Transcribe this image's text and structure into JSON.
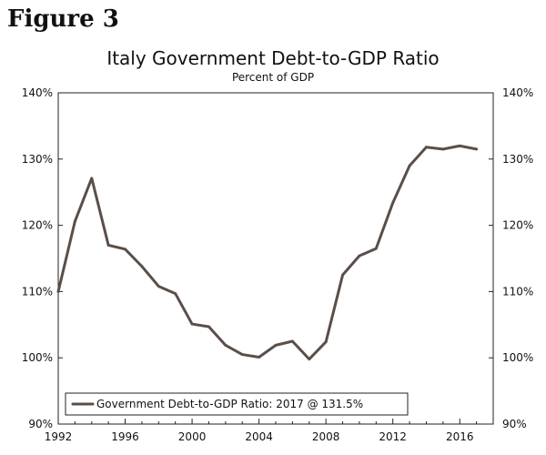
{
  "header": {
    "figure_label": "Figure 3"
  },
  "chart_data": {
    "type": "line",
    "title": "Italy Government Debt-to-GDP Ratio",
    "subtitle": "Percent of GDP",
    "xlabel": "",
    "ylabel": "",
    "x": [
      1992,
      1993,
      1994,
      1995,
      1996,
      1997,
      1998,
      1999,
      2000,
      2001,
      2002,
      2003,
      2004,
      2005,
      2006,
      2007,
      2008,
      2009,
      2010,
      2011,
      2012,
      2013,
      2014,
      2015,
      2016,
      2017
    ],
    "series": [
      {
        "name": "Government Debt-to-GDP Ratio: 2017 @ 131.5%",
        "color": "#5b4e49",
        "values": [
          110,
          120.6,
          127.1,
          117.0,
          116.4,
          113.8,
          110.8,
          109.7,
          105.1,
          104.7,
          101.9,
          100.5,
          100.1,
          101.9,
          102.5,
          99.8,
          102.4,
          112.5,
          115.4,
          116.5,
          123.4,
          129.0,
          131.8,
          131.5,
          132.0,
          131.5
        ]
      }
    ],
    "xlim": [
      1992,
      2018
    ],
    "ylim": [
      90,
      140
    ],
    "x_ticks": [
      1992,
      1996,
      2000,
      2004,
      2008,
      2012,
      2016
    ],
    "x_tick_labels": [
      "1992",
      "1996",
      "2000",
      "2004",
      "2008",
      "2012",
      "2016"
    ],
    "y_ticks": [
      90,
      100,
      110,
      120,
      130,
      140
    ],
    "y_tick_labels_left": [
      "90%",
      "100%",
      "110%",
      "120%",
      "130%",
      "140%"
    ],
    "y_tick_labels_right": [
      "90%",
      "100%",
      "110%",
      "120%",
      "130%",
      "140%"
    ],
    "grid": false,
    "legend_position": "bottom-left"
  }
}
